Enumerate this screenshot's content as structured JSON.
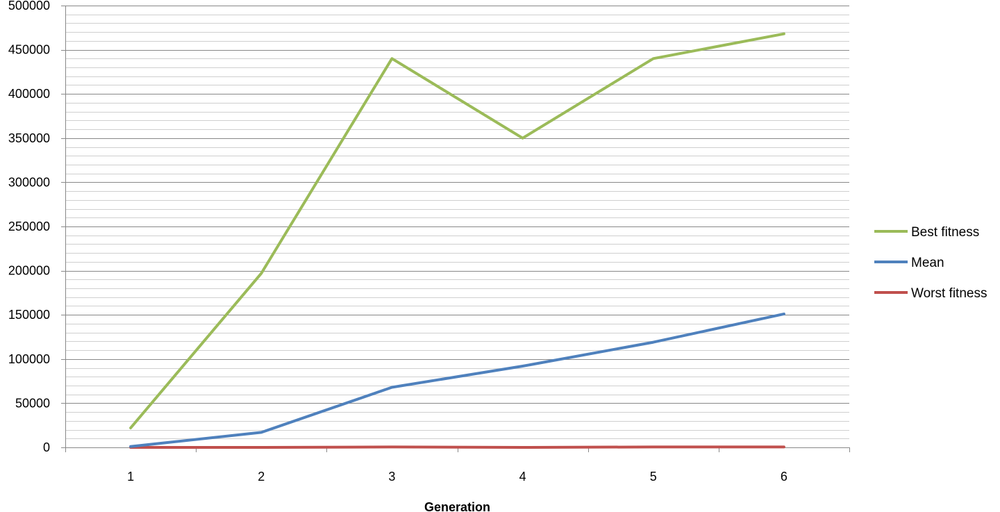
{
  "chart_data": {
    "type": "line",
    "title": "",
    "xlabel": "Generation",
    "ylabel": "",
    "categories": [
      "1",
      "2",
      "3",
      "4",
      "5",
      "6"
    ],
    "ylim": [
      0,
      500000
    ],
    "y_major_step": 50000,
    "y_minor_step": 10000,
    "y_ticks": [
      "0",
      "50000",
      "100000",
      "150000",
      "200000",
      "250000",
      "300000",
      "350000",
      "400000",
      "450000",
      "500000"
    ],
    "grid": true,
    "legend_position": "right",
    "series": [
      {
        "name": "Best fitness",
        "color": "#9BBB59",
        "values": [
          22000,
          197000,
          440000,
          350000,
          440000,
          468000
        ]
      },
      {
        "name": "Mean",
        "color": "#4F81BD",
        "values": [
          1000,
          17000,
          68000,
          92000,
          119000,
          151000
        ]
      },
      {
        "name": "Worst fitness",
        "color": "#C0504D",
        "values": [
          0,
          0,
          500,
          0,
          500,
          500
        ]
      }
    ]
  }
}
